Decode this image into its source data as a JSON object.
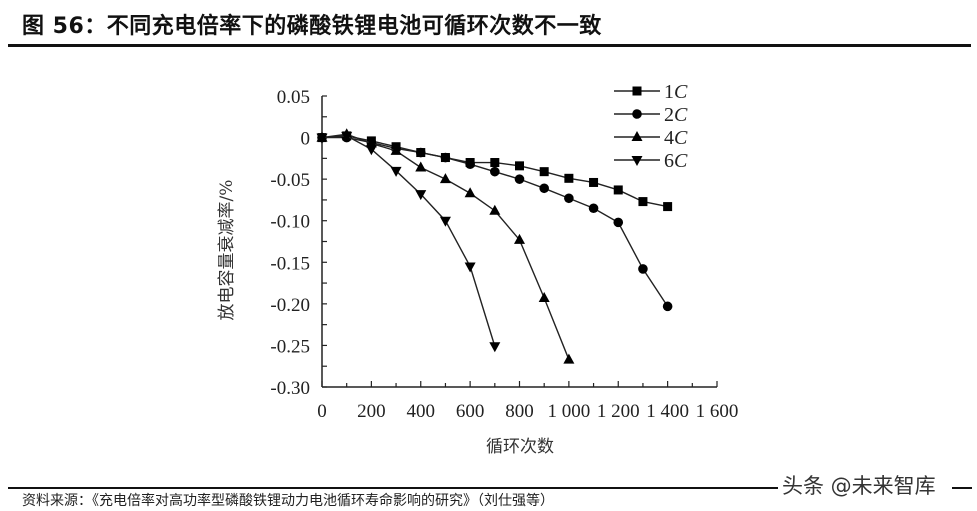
{
  "figure": {
    "title": "图 56：不同充电倍率下的磷酸铁锂电池可循环次数不一致",
    "source": "资料来源：《充电倍率对高功率型磷酸铁锂动力电池循环寿命影响的研究》（刘仕强等）",
    "watermark": "头条 @未来智库"
  },
  "chart_data": {
    "type": "line",
    "title": "不同充电倍率下的磷酸铁锂电池可循环次数不一致",
    "xlabel": "循环次数",
    "ylabel": "放电容量衰减率/%",
    "xlim": [
      0,
      1600
    ],
    "ylim": [
      -0.3,
      0.05
    ],
    "xticks": [
      0,
      200,
      400,
      600,
      800,
      1000,
      1200,
      1400,
      1600
    ],
    "xtick_labels": [
      "0",
      "200",
      "400",
      "600",
      "800",
      "1 000",
      "1 200",
      "1 400",
      "1 600"
    ],
    "yticks": [
      0.05,
      0,
      -0.05,
      -0.1,
      -0.15,
      -0.2,
      -0.25,
      -0.3
    ],
    "ytick_labels": [
      "0.05",
      "0",
      "-0.05",
      "-0.10",
      "-0.15",
      "-0.20",
      "-0.25",
      "-0.30"
    ],
    "grid": false,
    "legend_position": "upper right",
    "series": [
      {
        "name": "1C",
        "marker": "square",
        "x": [
          0,
          100,
          200,
          300,
          400,
          500,
          600,
          700,
          800,
          900,
          1000,
          1100,
          1200,
          1300,
          1400
        ],
        "values": [
          0,
          0.002,
          -0.004,
          -0.011,
          -0.018,
          -0.024,
          -0.03,
          -0.03,
          -0.034,
          -0.041,
          -0.049,
          -0.054,
          -0.063,
          -0.077,
          -0.083
        ]
      },
      {
        "name": "2C",
        "marker": "circle",
        "x": [
          0,
          100,
          200,
          300,
          400,
          500,
          600,
          700,
          800,
          900,
          1000,
          1100,
          1200,
          1300,
          1400
        ],
        "values": [
          0,
          0,
          -0.006,
          -0.013,
          -0.018,
          -0.024,
          -0.032,
          -0.041,
          -0.05,
          -0.061,
          -0.073,
          -0.085,
          -0.102,
          -0.158,
          -0.203
        ]
      },
      {
        "name": "4C",
        "marker": "triangle-up",
        "x": [
          0,
          100,
          200,
          300,
          400,
          500,
          600,
          700,
          800,
          900,
          1000
        ],
        "values": [
          0,
          0.004,
          -0.007,
          -0.016,
          -0.036,
          -0.05,
          -0.067,
          -0.088,
          -0.123,
          -0.193,
          -0.267
        ]
      },
      {
        "name": "6C",
        "marker": "triangle-down",
        "x": [
          0,
          100,
          200,
          300,
          400,
          500,
          600,
          700
        ],
        "values": [
          0,
          0.002,
          -0.014,
          -0.04,
          -0.068,
          -0.1,
          -0.155,
          -0.251
        ]
      }
    ]
  }
}
